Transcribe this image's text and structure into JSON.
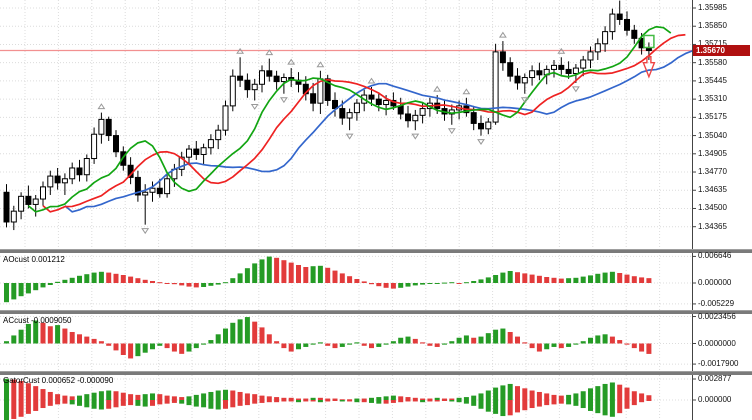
{
  "theme": {
    "candle_up": "#ffffff",
    "candle_down": "#000000",
    "candle_border": "#000000",
    "alligator_lips_green": "#12a512",
    "alligator_teeth_red": "#ee2222",
    "alligator_jaw_blue": "#3366cc",
    "hist_up_green": "#259b25",
    "hist_down_red": "#e23b3b",
    "price_line": "#f29090",
    "badge_bg": "#b01010",
    "fractal_gray": "#999999",
    "grid": "#dcdcdc",
    "separator": "#7a7a7a",
    "axis_line": "#444444",
    "marker_green": "#44bb44",
    "marker_red": "#ee4444"
  },
  "chart_data": {
    "type": "candlestick",
    "price_axis": {
      "labels": [
        {
          "text": "1.35985",
          "value": 1.35985
        },
        {
          "text": "1.35850",
          "value": 1.3585
        },
        {
          "text": "1.35715",
          "value": 1.35715
        },
        {
          "text": "1.35580",
          "value": 1.3558
        },
        {
          "text": "1.35445",
          "value": 1.35445
        },
        {
          "text": "1.35310",
          "value": 1.3531
        },
        {
          "text": "1.35175",
          "value": 1.35175
        },
        {
          "text": "1.35040",
          "value": 1.3504
        },
        {
          "text": "1.34905",
          "value": 1.34905
        },
        {
          "text": "1.34770",
          "value": 1.3477
        },
        {
          "text": "1.34635",
          "value": 1.34635
        },
        {
          "text": "1.34500",
          "value": 1.345
        },
        {
          "text": "1.34365",
          "value": 1.34365
        }
      ],
      "current_price": "1.35670",
      "current_price_value": 1.3567
    },
    "candles": [
      [
        1.3462,
        1.3468,
        1.3436,
        1.344
      ],
      [
        1.344,
        1.3452,
        1.3434,
        1.3448
      ],
      [
        1.3448,
        1.3462,
        1.3442,
        1.3459
      ],
      [
        1.3459,
        1.3467,
        1.345,
        1.3453
      ],
      [
        1.3453,
        1.346,
        1.3444,
        1.3457
      ],
      [
        1.3457,
        1.347,
        1.3452,
        1.3466
      ],
      [
        1.3466,
        1.3478,
        1.346,
        1.3474
      ],
      [
        1.3474,
        1.348,
        1.3464,
        1.3469
      ],
      [
        1.3469,
        1.3476,
        1.346,
        1.3472
      ],
      [
        1.3472,
        1.3484,
        1.3468,
        1.348
      ],
      [
        1.348,
        1.3486,
        1.347,
        1.3475
      ],
      [
        1.3475,
        1.349,
        1.347,
        1.3487
      ],
      [
        1.3487,
        1.351,
        1.3483,
        1.3505
      ],
      [
        1.3505,
        1.3521,
        1.3498,
        1.3516
      ],
      [
        1.3516,
        1.3518,
        1.35,
        1.3504
      ],
      [
        1.3504,
        1.3508,
        1.3488,
        1.3492
      ],
      [
        1.3492,
        1.3496,
        1.3478,
        1.3482
      ],
      [
        1.3482,
        1.3488,
        1.3468,
        1.3473
      ],
      [
        1.3473,
        1.3478,
        1.3455,
        1.346
      ],
      [
        1.346,
        1.3468,
        1.3438,
        1.3462
      ],
      [
        1.3462,
        1.347,
        1.3455,
        1.3465
      ],
      [
        1.3465,
        1.3472,
        1.3458,
        1.3461
      ],
      [
        1.3461,
        1.3475,
        1.3458,
        1.3472
      ],
      [
        1.3472,
        1.3483,
        1.3466,
        1.3479
      ],
      [
        1.3479,
        1.3492,
        1.3474,
        1.3488
      ],
      [
        1.3488,
        1.3497,
        1.3482,
        1.3494
      ],
      [
        1.3494,
        1.35,
        1.3486,
        1.349
      ],
      [
        1.349,
        1.3498,
        1.3482,
        1.3495
      ],
      [
        1.3495,
        1.3505,
        1.349,
        1.3501
      ],
      [
        1.3501,
        1.3512,
        1.3494,
        1.3508
      ],
      [
        1.3508,
        1.353,
        1.3504,
        1.3526
      ],
      [
        1.3526,
        1.3553,
        1.3522,
        1.3548
      ],
      [
        1.3548,
        1.3562,
        1.354,
        1.3545
      ],
      [
        1.3545,
        1.355,
        1.3532,
        1.3538
      ],
      [
        1.3538,
        1.3546,
        1.353,
        1.3542
      ],
      [
        1.3542,
        1.3556,
        1.3536,
        1.3552
      ],
      [
        1.3552,
        1.3561,
        1.3544,
        1.3548
      ],
      [
        1.3548,
        1.3552,
        1.3538,
        1.3544
      ],
      [
        1.3544,
        1.355,
        1.3535,
        1.3547
      ],
      [
        1.3547,
        1.3554,
        1.354,
        1.3545
      ],
      [
        1.3545,
        1.3551,
        1.3536,
        1.3542
      ],
      [
        1.3542,
        1.3548,
        1.353,
        1.3535
      ],
      [
        1.3535,
        1.3543,
        1.3522,
        1.3528
      ],
      [
        1.3528,
        1.3552,
        1.352,
        1.3546
      ],
      [
        1.3546,
        1.3549,
        1.3526,
        1.353
      ],
      [
        1.353,
        1.3536,
        1.3518,
        1.3524
      ],
      [
        1.3524,
        1.353,
        1.3512,
        1.3517
      ],
      [
        1.3517,
        1.3524,
        1.3508,
        1.3521
      ],
      [
        1.3521,
        1.3531,
        1.3515,
        1.3528
      ],
      [
        1.3528,
        1.3538,
        1.3522,
        1.3534
      ],
      [
        1.3534,
        1.354,
        1.3526,
        1.3531
      ],
      [
        1.3531,
        1.3536,
        1.3522,
        1.3527
      ],
      [
        1.3527,
        1.3534,
        1.3519,
        1.353
      ],
      [
        1.353,
        1.3536,
        1.3523,
        1.3526
      ],
      [
        1.3526,
        1.3532,
        1.3516,
        1.352
      ],
      [
        1.352,
        1.3526,
        1.351,
        1.3515
      ],
      [
        1.3515,
        1.3523,
        1.3508,
        1.3519
      ],
      [
        1.3519,
        1.3528,
        1.3513,
        1.3524
      ],
      [
        1.3524,
        1.3532,
        1.3518,
        1.3528
      ],
      [
        1.3528,
        1.3534,
        1.352,
        1.3524
      ],
      [
        1.3524,
        1.353,
        1.3515,
        1.352
      ],
      [
        1.352,
        1.3527,
        1.3512,
        1.3523
      ],
      [
        1.3523,
        1.353,
        1.3516,
        1.3526
      ],
      [
        1.3526,
        1.3532,
        1.3518,
        1.3521
      ],
      [
        1.3521,
        1.3526,
        1.3508,
        1.3513
      ],
      [
        1.3513,
        1.3519,
        1.3504,
        1.3509
      ],
      [
        1.3509,
        1.3517,
        1.3505,
        1.3514
      ],
      [
        1.3514,
        1.3572,
        1.3512,
        1.3566
      ],
      [
        1.3566,
        1.3574,
        1.3552,
        1.3558
      ],
      [
        1.3558,
        1.3562,
        1.3544,
        1.3548
      ],
      [
        1.3548,
        1.3554,
        1.3538,
        1.3543
      ],
      [
        1.3543,
        1.355,
        1.3535,
        1.3547
      ],
      [
        1.3547,
        1.3556,
        1.3541,
        1.3552
      ],
      [
        1.3552,
        1.3558,
        1.3545,
        1.3549
      ],
      [
        1.3549,
        1.3556,
        1.3542,
        1.3553
      ],
      [
        1.3553,
        1.356,
        1.3547,
        1.3556
      ],
      [
        1.3556,
        1.3562,
        1.3549,
        1.3553
      ],
      [
        1.3553,
        1.3559,
        1.3546,
        1.355
      ],
      [
        1.355,
        1.3557,
        1.3543,
        1.3554
      ],
      [
        1.3554,
        1.3563,
        1.3548,
        1.356
      ],
      [
        1.356,
        1.357,
        1.3554,
        1.3566
      ],
      [
        1.3566,
        1.3576,
        1.356,
        1.3572
      ],
      [
        1.3572,
        1.3585,
        1.3566,
        1.3581
      ],
      [
        1.3581,
        1.3598,
        1.3575,
        1.3594
      ],
      [
        1.3594,
        1.3604,
        1.3586,
        1.359
      ],
      [
        1.359,
        1.3596,
        1.3578,
        1.3582
      ],
      [
        1.3582,
        1.3586,
        1.3572,
        1.3576
      ],
      [
        1.3576,
        1.358,
        1.3564,
        1.3569
      ],
      [
        1.3569,
        1.3573,
        1.356,
        1.3567
      ]
    ],
    "overlays": {
      "alligator": {
        "jaw": {
          "period": 13,
          "shift": 8
        },
        "teeth": {
          "period": 8,
          "shift": 5
        },
        "lips": {
          "period": 5,
          "shift": 3
        }
      },
      "fractals": true
    },
    "markers": [
      {
        "shape": "square",
        "price": 1.35737
      },
      {
        "shape": "arrow_down",
        "price": 1.3555
      }
    ],
    "panels": [
      {
        "id": "ao",
        "label": "AOcust 0.001212",
        "axis": [
          {
            "text": "0.006646",
            "value": 0.006646
          },
          {
            "text": "0.000000",
            "value": 0
          },
          {
            "text": "-0.005229",
            "value": -0.005229
          }
        ],
        "values": [
          -0.0048,
          -0.0041,
          -0.0033,
          -0.0026,
          -0.0018,
          -0.0011,
          -0.0005,
          0.0003,
          0.0008,
          0.0013,
          0.0018,
          0.0022,
          0.0026,
          0.0028,
          0.0026,
          0.0023,
          0.002,
          0.0016,
          0.0012,
          0.0008,
          0.0005,
          0.0002,
          -0.0001,
          -0.0003,
          -0.0006,
          -0.0009,
          -0.0011,
          -0.001,
          -0.0007,
          -0.0004,
          0.0002,
          0.0012,
          0.0024,
          0.0037,
          0.0049,
          0.0059,
          0.0066,
          0.0063,
          0.0057,
          0.0051,
          0.0045,
          0.004,
          0.0042,
          0.0043,
          0.0038,
          0.0031,
          0.0024,
          0.0017,
          0.001,
          0.0004,
          -0.0003,
          -0.0008,
          -0.0012,
          -0.0014,
          -0.0012,
          -0.0009,
          -0.0006,
          -0.0004,
          -0.0002,
          -0.0001,
          0.0001,
          0.0002,
          -0.0001,
          0.0002,
          0.0005,
          0.0009,
          0.0014,
          0.002,
          0.0026,
          0.003,
          0.0027,
          0.0024,
          0.0021,
          0.0018,
          0.0015,
          0.0013,
          0.0011,
          0.0012,
          0.0013,
          0.0016,
          0.0019,
          0.0023,
          0.0026,
          0.0028,
          0.0025,
          0.0021,
          0.0017,
          0.0014,
          0.001212
        ]
      },
      {
        "id": "ac",
        "label": "ACcust -0.0009050",
        "axis": [
          {
            "text": "0.0023456",
            "value": 0.0023456
          },
          {
            "text": "0.0000000",
            "value": 0
          },
          {
            "text": "-0.0017900",
            "value": -0.00179
          }
        ],
        "values": [
          0.0002,
          0.0007,
          0.0012,
          0.0017,
          0.002,
          0.0018,
          0.0015,
          0.0016,
          0.0013,
          0.001,
          0.0008,
          0.0006,
          0.0004,
          0.0002,
          -0.0002,
          -0.0006,
          -0.001,
          -0.0013,
          -0.0011,
          -0.0008,
          -0.0005,
          -0.0002,
          -0.0004,
          -0.0007,
          -0.0009,
          -0.0007,
          -0.0004,
          -0.0001,
          0.0003,
          0.0008,
          0.0013,
          0.0018,
          0.0021,
          0.0023,
          0.0019,
          0.0014,
          0.0008,
          0.0002,
          -0.0004,
          -0.0007,
          -0.0005,
          -0.0003,
          -0.0001,
          0.0001,
          -0.0002,
          -0.0004,
          -0.0003,
          -0.0001,
          0.0001,
          -0.0002,
          -0.0004,
          -0.0003,
          -0.0001,
          0.0002,
          0.0005,
          0.0006,
          0.0004,
          0.0001,
          -0.0002,
          -0.0003,
          -0.0001,
          0.0002,
          0.0005,
          0.0007,
          0.0005,
          0.0006,
          0.0009,
          0.0012,
          0.0013,
          0.001,
          0.0006,
          0.0001,
          -0.0004,
          -0.0007,
          -0.0005,
          -0.0003,
          -0.0004,
          -0.0003,
          -0.0001,
          0.0002,
          0.0005,
          0.0007,
          0.0008,
          0.0006,
          0.0003,
          -0.0001,
          -0.0004,
          -0.0007,
          -0.000905
        ]
      },
      {
        "id": "gator",
        "label": "GatorCust 0.000652 -0.000090",
        "axis": [
          {
            "text": "0.002877",
            "value": 0.002877
          },
          {
            "text": "0.000000",
            "value": 0
          }
        ],
        "upper": [
          0.0029,
          0.0028,
          0.0026,
          0.0023,
          0.0019,
          0.0015,
          0.0011,
          0.0008,
          0.0006,
          0.0005,
          0.0006,
          0.0008,
          0.001,
          0.0012,
          0.0013,
          0.0012,
          0.001,
          0.0008,
          0.0007,
          0.0008,
          0.0009,
          0.0008,
          0.0006,
          0.0005,
          0.0004,
          0.0005,
          0.0007,
          0.0009,
          0.0011,
          0.0013,
          0.0014,
          0.0013,
          0.0011,
          0.0009,
          0.0008,
          0.0006,
          0.0005,
          0.0004,
          0.0003,
          0.0003,
          0.0002,
          0.0002,
          0.0003,
          0.0003,
          0.0002,
          0.0002,
          0.0001,
          0.0001,
          0.0002,
          0.0002,
          0.0003,
          0.0004,
          0.0005,
          0.0006,
          0.0005,
          0.0004,
          0.0003,
          0.0002,
          0.0002,
          0.0003,
          0.0002,
          0.0002,
          0.0003,
          0.0004,
          0.0006,
          0.0009,
          0.0013,
          0.0017,
          0.002,
          0.0022,
          0.0019,
          0.0016,
          0.0013,
          0.0011,
          0.0009,
          0.0007,
          0.0006,
          0.0007,
          0.0009,
          0.0012,
          0.0016,
          0.0019,
          0.0022,
          0.0024,
          0.0021,
          0.0017,
          0.0012,
          0.0009,
          0.000652
        ],
        "lower": [
          -0.0028,
          -0.0026,
          -0.0023,
          -0.0019,
          -0.0015,
          -0.0011,
          -0.0008,
          -0.0006,
          -0.0005,
          -0.0006,
          -0.0008,
          -0.001,
          -0.0012,
          -0.0013,
          -0.0012,
          -0.001,
          -0.0008,
          -0.0007,
          -0.0008,
          -0.0009,
          -0.0008,
          -0.0006,
          -0.0005,
          -0.0004,
          -0.0005,
          -0.0007,
          -0.0009,
          -0.001,
          -0.0012,
          -0.0013,
          -0.0012,
          -0.001,
          -0.0008,
          -0.0007,
          -0.0005,
          -0.0004,
          -0.0003,
          -0.0003,
          -0.0002,
          -0.0002,
          -0.0003,
          -0.0002,
          -0.0002,
          -0.0003,
          -0.0002,
          -0.0001,
          -0.0002,
          -0.0002,
          -0.0003,
          -0.0003,
          -0.0004,
          -0.0005,
          -0.0005,
          -0.0004,
          -0.0003,
          -0.0002,
          -0.0002,
          -0.0003,
          -0.0002,
          -0.0002,
          -0.0001,
          -0.0002,
          -0.0003,
          -0.0005,
          -0.0008,
          -0.0012,
          -0.0016,
          -0.0019,
          -0.0022,
          -0.0021,
          -0.0017,
          -0.0014,
          -0.0011,
          -0.0009,
          -0.0007,
          -0.0006,
          -0.0005,
          -0.0006,
          -0.0008,
          -0.0011,
          -0.0015,
          -0.0018,
          -0.0021,
          -0.0023,
          -0.0018,
          -0.0012,
          -0.0007,
          -0.0003,
          -9e-05
        ]
      }
    ]
  }
}
